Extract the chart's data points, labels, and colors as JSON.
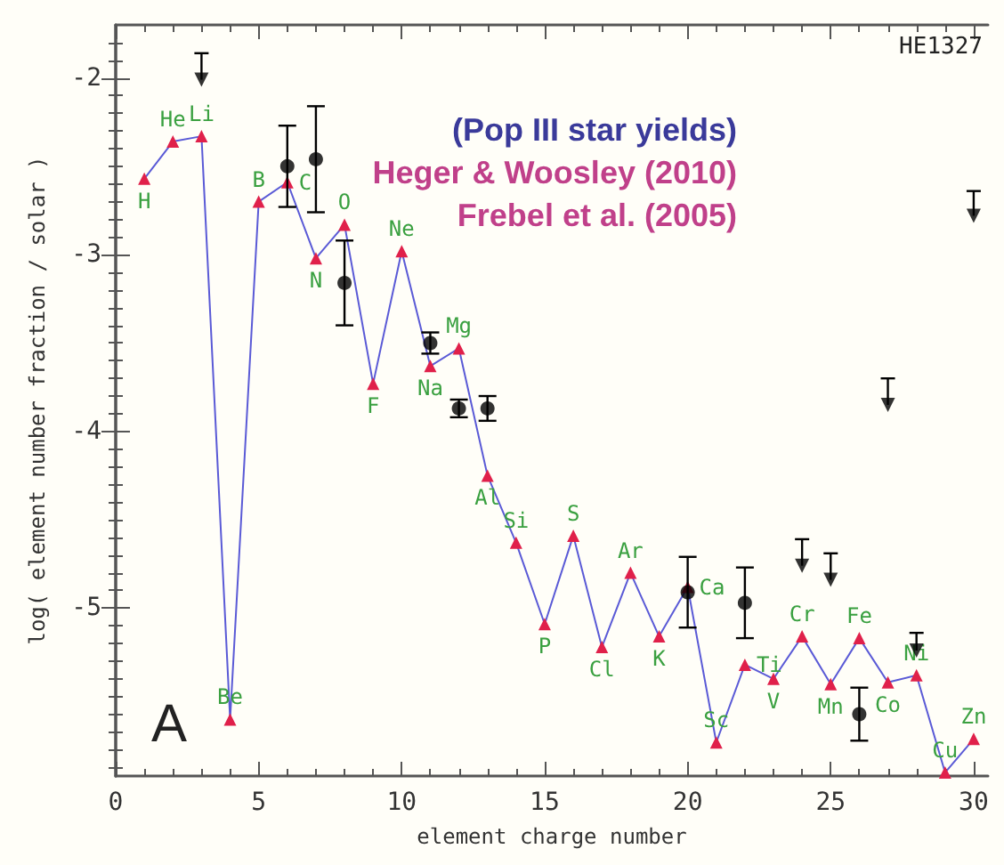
{
  "chart_data": {
    "type": "line",
    "xlabel": "element charge number",
    "ylabel": "log( element number fraction / solar )",
    "annotations": [
      "HE1327",
      "(Pop III star yields)",
      "Heger & Woosley (2010)",
      "Frebel et al. (2005)",
      "A"
    ],
    "xlim": [
      0,
      30.5
    ],
    "xticks": [
      0,
      5,
      10,
      15,
      20,
      25,
      30
    ],
    "ylim": [
      -5.95,
      -1.7
    ],
    "yticks": [
      -5,
      -4,
      -3,
      -2
    ],
    "grid": false,
    "line_style": "solid",
    "series": [
      {
        "marker": "triangle",
        "color": "#5a5ad6",
        "colors": [
          "#e0204a",
          "#e0204a",
          "#e0204a",
          "#e0204a",
          "#e0204a",
          "#e0204a",
          "#e0204a",
          "#e0204a",
          "#e0204a",
          "#e0204a",
          "#e0204a",
          "#e0204a",
          "#e0204a",
          "#e0204a",
          "#e0204a",
          "#e0204a",
          "#e0204a",
          "#e0204a",
          "#e0204a",
          "#e0204a",
          "#e0204a",
          "#e0204a",
          "#e0204a",
          "#e0204a",
          "#e0204a",
          "#e0204a",
          "#e0204a",
          "#e0204a",
          "#e0204a",
          "#e0204a"
        ],
        "x": [
          1,
          2,
          3,
          4,
          5,
          6,
          7,
          8,
          9,
          10,
          11,
          12,
          13,
          14,
          15,
          16,
          17,
          18,
          19,
          20,
          21,
          22,
          23,
          24,
          25,
          26,
          27,
          28,
          29,
          30
        ],
        "values": [
          -2.57,
          -2.36,
          -2.33,
          -5.63,
          -2.7,
          -2.59,
          -3.02,
          -2.83,
          -3.73,
          -2.98,
          -3.63,
          -3.53,
          -4.25,
          -4.63,
          -5.09,
          -4.59,
          -5.22,
          -4.8,
          -5.16,
          -4.88,
          -5.76,
          -5.32,
          -5.4,
          -5.16,
          -5.43,
          -5.17,
          -5.42,
          -5.38,
          -5.93,
          -5.74
        ],
        "value_labels": [
          "H",
          "He",
          "Li",
          "Be",
          "B",
          "C",
          "N",
          "O",
          "F",
          "Ne",
          "Na",
          "Mg",
          "Al",
          "Si",
          "P",
          "S",
          "Cl",
          "Ar",
          "K",
          "Ca",
          "Sc",
          "Ti",
          "V",
          "Cr",
          "Mn",
          "Fe",
          "Co",
          "Ni",
          "Cu",
          "Zn"
        ]
      },
      {
        "type": "scatter",
        "marker": "circle",
        "color": "#000000",
        "x": [
          6,
          7,
          8,
          11,
          12,
          13,
          20,
          22,
          26
        ],
        "values": [
          -2.5,
          -2.46,
          -3.16,
          -3.5,
          -3.87,
          -3.87,
          -4.91,
          -4.97,
          -5.6
        ],
        "errors": [
          0.23,
          0.3,
          0.24,
          0.06,
          0.05,
          0.07,
          0.2,
          0.2,
          0.15
        ]
      },
      {
        "type": "scatter",
        "color": "#000000",
        "x": [
          3,
          24,
          25,
          27,
          28,
          30
        ],
        "values": [
          -2.01,
          -4.76,
          -4.84,
          -3.85,
          -5.24,
          -2.78
        ],
        "errors": [
          [
            -2.01,
            -1.86
          ],
          [
            -4.76,
            -4.61
          ],
          [
            -4.84,
            -4.69
          ],
          [
            -3.85,
            -3.7
          ],
          [
            -5.24,
            -5.14
          ],
          [
            -2.78,
            -2.64
          ]
        ]
      }
    ]
  }
}
